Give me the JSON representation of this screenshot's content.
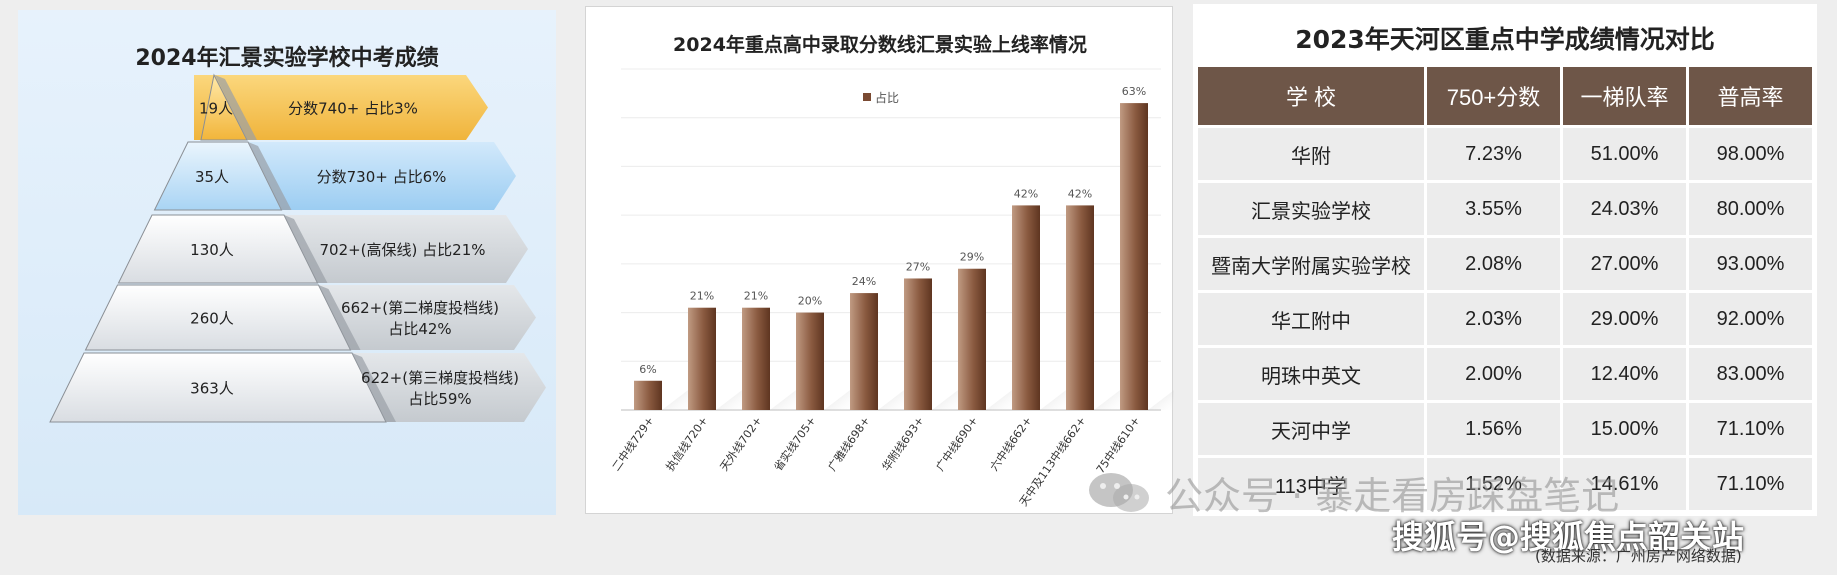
{
  "pyramid": {
    "title": "2024年汇景实验学校中考成绩",
    "tiers": [
      {
        "count": "19人",
        "desc": [
          "分数740+   占比3%"
        ],
        "color": "#f6c45c"
      },
      {
        "count": "35人",
        "desc": [
          "分数730+   占比6%"
        ],
        "color": "#b2d8f5"
      },
      {
        "count": "130人",
        "desc": [
          "702+(高保线)   占比21%"
        ],
        "color": "#d5d9dd"
      },
      {
        "count": "260人",
        "desc": [
          "662+(第二梯度投档线)",
          "占比42%"
        ],
        "color": "#d5d9dd"
      },
      {
        "count": "363人",
        "desc": [
          "622+(第三梯度投档线)",
          "占比59%"
        ],
        "color": "#d5d9dd"
      }
    ]
  },
  "chart_data": {
    "type": "bar",
    "title": "2024年重点高中录取分数线汇景实验上线率情况",
    "xlabel": "",
    "ylabel": "",
    "ylim": [
      0,
      70
    ],
    "legend": {
      "position": "top",
      "label": "占比"
    },
    "categories": [
      "二中线729+",
      "执信线720+",
      "天外线702+",
      "省实线705+",
      "广雅线698+",
      "华附线693+",
      "广中线690+",
      "六中线662+",
      "天中及113中线662+",
      "75中线610+"
    ],
    "series": [
      {
        "name": "占比",
        "values": [
          6,
          21,
          21,
          20,
          24,
          27,
          29,
          42,
          42,
          63
        ],
        "labels": [
          "6%",
          "21%",
          "21%",
          "20%",
          "24%",
          "27%",
          "29%",
          "42%",
          "42%",
          "63%"
        ]
      }
    ],
    "colors": {
      "bar_light": "#c09a82",
      "bar_dark": "#5e3520"
    }
  },
  "table": {
    "title": "2023年天河区重点中学成绩情况对比",
    "headers": [
      "学 校",
      "750+分数",
      "一梯队率",
      "普高率"
    ],
    "rows": [
      [
        "华附",
        "7.23%",
        "51.00%",
        "98.00%"
      ],
      [
        "汇景实验学校",
        "3.55%",
        "24.03%",
        "80.00%"
      ],
      [
        "暨南大学附属实验学校",
        "2.08%",
        "27.00%",
        "93.00%"
      ],
      [
        "华工附中",
        "2.03%",
        "29.00%",
        "92.00%"
      ],
      [
        "明珠中英文",
        "2.00%",
        "12.40%",
        "83.00%"
      ],
      [
        "天河中学",
        "1.56%",
        "15.00%",
        "71.10%"
      ],
      [
        "113中学",
        "1.52%",
        "14.61%",
        "71.10%"
      ]
    ],
    "colors": {
      "header_bg": "#6e5648",
      "cell_bg": "#ececec"
    }
  },
  "watermarks": {
    "wechat": "公众号 · 暴走看房踩盘笔记",
    "sohu": "搜狐号@搜狐焦点韶关站",
    "source": "(数据来源：广州房产网络数据)"
  }
}
